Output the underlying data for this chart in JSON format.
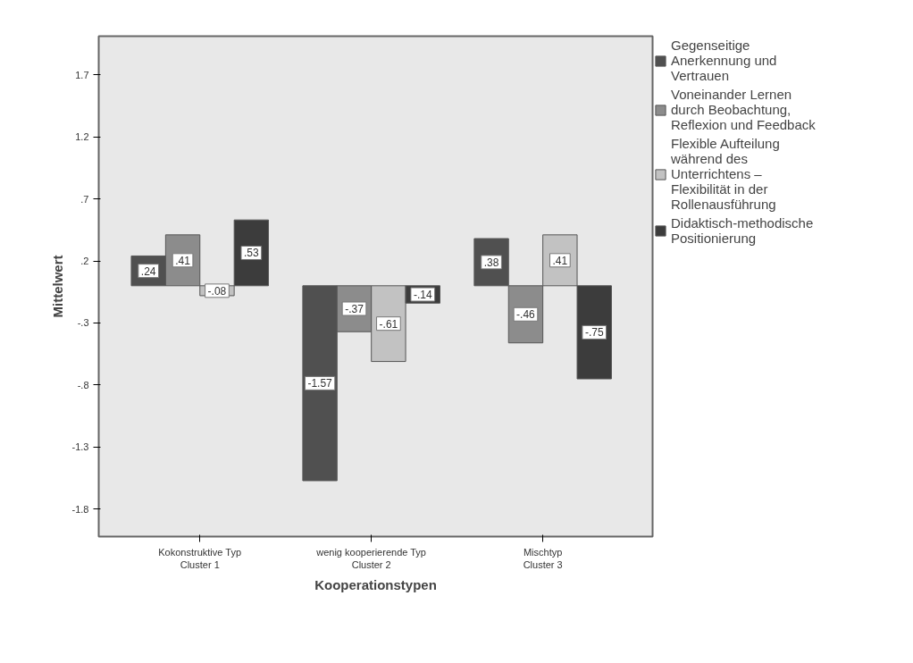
{
  "chart_data": {
    "type": "bar",
    "xlabel": "Kooperationstypen",
    "ylabel": "Mittelwert",
    "categories": [
      "Kokonstruktive Typ\nCluster 1",
      "wenig kooperierende Typ\nCluster 2",
      "Mischtyp\nCluster 3"
    ],
    "series": [
      {
        "name": "Gegenseitige Anerkennung und Vertrauen",
        "color": "#505050",
        "values": [
          0.24,
          -1.57,
          0.38
        ],
        "value_labels": [
          ".24",
          "-1.57",
          ".38"
        ]
      },
      {
        "name": "Voneinander Lernen durch Beobachtung, Reflexion und Feedback",
        "color": "#8c8c8c",
        "values": [
          0.41,
          -0.37,
          -0.46
        ],
        "value_labels": [
          ".41",
          "-.37",
          "-.46"
        ]
      },
      {
        "name": "Flexible Aufteilung während des Unterrichtens – Flexibilität in der Rollenausführung",
        "color": "#c2c2c2",
        "values": [
          -0.08,
          -0.61,
          0.41
        ],
        "value_labels": [
          "-.08",
          "-.61",
          ".41"
        ]
      },
      {
        "name": "Didaktisch-methodische Positionierung",
        "color": "#3c3c3c",
        "values": [
          0.53,
          -0.14,
          -0.75
        ],
        "value_labels": [
          ".53",
          "-.14",
          "-.75"
        ]
      }
    ],
    "ylim": [
      -2.02,
      2.01
    ],
    "yticks": [
      {
        "value": -1.8,
        "label": "-1.8"
      },
      {
        "value": -1.3,
        "label": "-1.3"
      },
      {
        "value": -0.8,
        "label": "-.8"
      },
      {
        "value": -0.3,
        "label": "-.3"
      },
      {
        "value": 0.2,
        "label": ".2"
      },
      {
        "value": 0.7,
        "label": ".7"
      },
      1.2,
      1.7
    ],
    "grid": false,
    "legend": "right"
  }
}
